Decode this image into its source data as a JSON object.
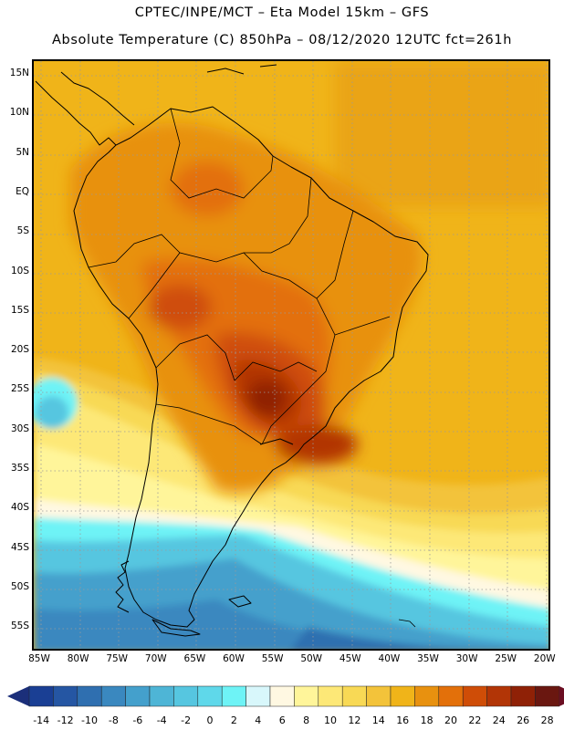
{
  "header": {
    "line1": "CPTEC/INPE/MCT –  Eta Model 15km – GFS",
    "line2": "Absolute Temperature (C) 850hPa – 08/12/2020 12UTC fct=261h"
  },
  "map": {
    "lat_labels": [
      "15N",
      "10N",
      "5N",
      "EQ",
      "5S",
      "10S",
      "15S",
      "20S",
      "25S",
      "30S",
      "35S",
      "40S",
      "45S",
      "50S",
      "55S"
    ],
    "lon_labels": [
      "85W",
      "80W",
      "75W",
      "70W",
      "65W",
      "60W",
      "55W",
      "50W",
      "45W",
      "40W",
      "35W",
      "30W",
      "25W",
      "20W"
    ],
    "ocean_color": "#f0b419",
    "land_hot_color": "#e37d0b",
    "core_color": "#a83a08"
  },
  "legend": {
    "labels": [
      "-14",
      "-12",
      "-10",
      "-8",
      "-6",
      "-4",
      "-2",
      "0",
      "2",
      "4",
      "6",
      "8",
      "10",
      "12",
      "14",
      "16",
      "18",
      "20",
      "22",
      "24",
      "26",
      "28"
    ],
    "colors": [
      "#1a3f94",
      "#2556a3",
      "#2f6fb0",
      "#3a88bf",
      "#44a0cc",
      "#4eb5d6",
      "#56c6e0",
      "#5fd8ea",
      "#6ef3f6",
      "#d8f7fb",
      "#fff8e2",
      "#fff59a",
      "#fde877",
      "#f8d955",
      "#f3c33a",
      "#f0b419",
      "#e8910f",
      "#e3700a",
      "#cf4d07",
      "#b23506",
      "#8f2106",
      "#6a1710"
    ]
  }
}
